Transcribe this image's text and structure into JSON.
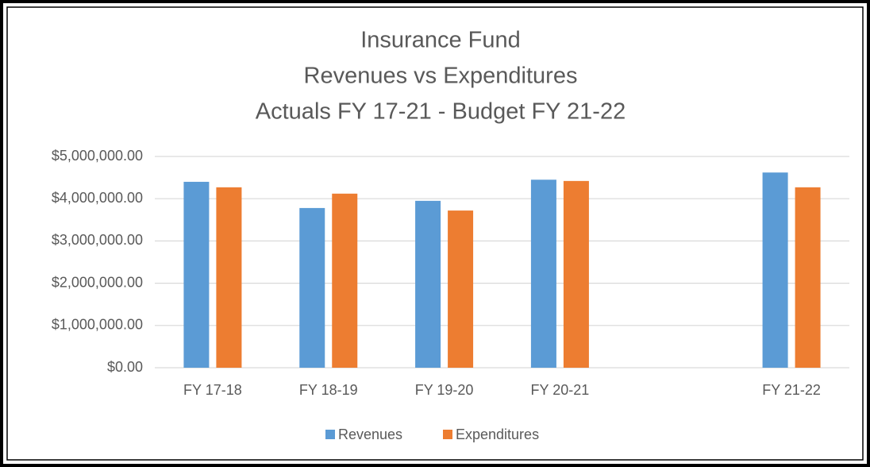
{
  "chart_data": {
    "type": "bar",
    "title": [
      "Insurance Fund",
      "Revenues vs Expenditures",
      "Actuals FY 17-21 - Budget FY 21-22"
    ],
    "categories": [
      "FY 17-18",
      "FY 18-19",
      "FY 19-20",
      "FY 20-21",
      null,
      "FY 21-22"
    ],
    "series": [
      {
        "name": "Revenues",
        "color": "#5b9bd5",
        "values": [
          4400000,
          3780000,
          3950000,
          4450000,
          null,
          4620000
        ]
      },
      {
        "name": "Expenditures",
        "color": "#ed7d31",
        "values": [
          4270000,
          4120000,
          3720000,
          4420000,
          null,
          4270000
        ]
      }
    ],
    "ylim": [
      0,
      5000000
    ],
    "yticks": [
      {
        "value": 0,
        "label": "$0.00"
      },
      {
        "value": 1000000,
        "label": "$1,000,000.00"
      },
      {
        "value": 2000000,
        "label": "$2,000,000.00"
      },
      {
        "value": 3000000,
        "label": "$3,000,000.00"
      },
      {
        "value": 4000000,
        "label": "$4,000,000.00"
      },
      {
        "value": 5000000,
        "label": "$5,000,000.00"
      }
    ],
    "grid": true,
    "legend": "bottom"
  }
}
